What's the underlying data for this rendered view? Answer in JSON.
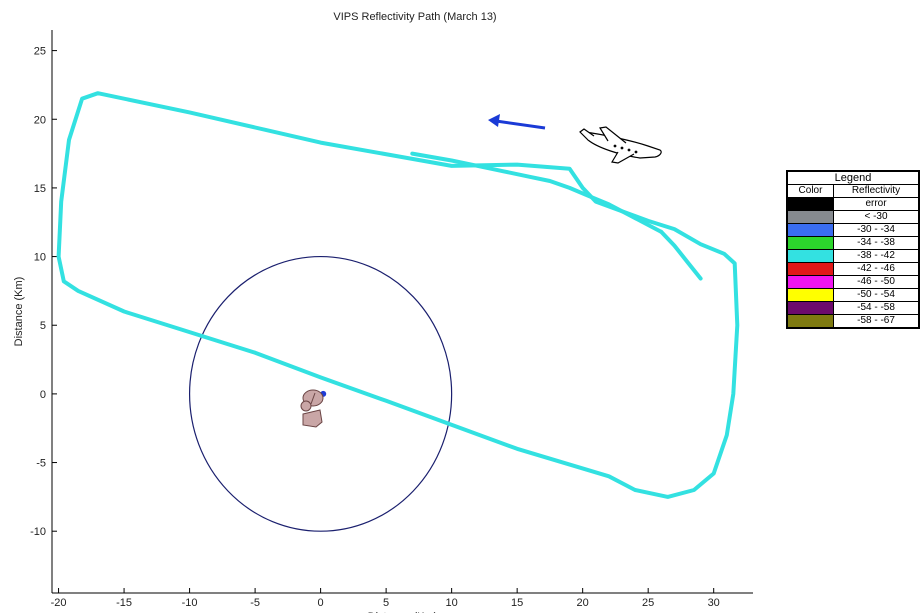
{
  "chart_data": {
    "type": "line",
    "title": "VIPS Reflectivity Path (March 13)",
    "xlabel": "Distance (Km)",
    "ylabel": "Distance (Km)",
    "xlim": [
      -20.5,
      33
    ],
    "ylim": [
      -14.5,
      26.5
    ],
    "xticks": [
      -20,
      -15,
      -10,
      -5,
      0,
      5,
      10,
      15,
      20,
      25,
      30
    ],
    "yticks": [
      -10,
      -5,
      0,
      5,
      10,
      15,
      20,
      25
    ],
    "grid": false,
    "range_circle": {
      "center": [
        0,
        0
      ],
      "radius": 10,
      "color": "#1a1f6e"
    },
    "radar_site": {
      "x": 0.2,
      "y": 0,
      "color": "#1f3bd6"
    },
    "flight_path": {
      "x": [
        -20,
        -19.8,
        -19.2,
        -18.2,
        -17,
        -10,
        0,
        10,
        15,
        19,
        20,
        21,
        23,
        25,
        27,
        29,
        30.8,
        31.6,
        31.8,
        31.5,
        31,
        30,
        28.5,
        26.5,
        24,
        22,
        15,
        5,
        0,
        -5,
        -10,
        -15,
        -18.5,
        -19.6,
        -20
      ],
      "y": [
        10,
        14,
        18.5,
        21.5,
        21.9,
        20.5,
        18.3,
        16.6,
        16.7,
        16.4,
        15,
        14,
        13.3,
        12.6,
        12,
        10.9,
        10.2,
        9.5,
        5,
        0,
        -3,
        -5.8,
        -7,
        -7.5,
        -7,
        -6,
        -4,
        -0.5,
        1.2,
        3,
        4.5,
        6,
        7.5,
        8.2,
        10
      ]
    },
    "branches": [
      {
        "x": [
          7,
          10,
          12,
          14,
          16,
          17.5,
          19,
          20.5,
          22,
          24,
          26
        ],
        "y": [
          17.5,
          17,
          16.6,
          16.2,
          15.8,
          15.5,
          15,
          14.4,
          13.8,
          12.8,
          11.8
        ]
      },
      {
        "x": [
          26,
          27,
          28,
          29
        ],
        "y": [
          11.8,
          10.8,
          9.6,
          8.4
        ]
      }
    ],
    "path_color": "#33e1e1",
    "legend": {
      "title": "Legend",
      "headers": [
        "Color",
        "Reflectivity"
      ],
      "entries": [
        {
          "color": "#000000",
          "label": "error"
        },
        {
          "color": "#868a8f",
          "label": "< -30"
        },
        {
          "color": "#3a6df0",
          "label": "-30 - -34"
        },
        {
          "color": "#2cd62c",
          "label": "-34 - -38"
        },
        {
          "color": "#33e1e1",
          "label": "-38 - -42"
        },
        {
          "color": "#e01818",
          "label": "-42 - -46"
        },
        {
          "color": "#f015f0",
          "label": "-46 - -50"
        },
        {
          "color": "#ffff00",
          "label": "-50 - -54"
        },
        {
          "color": "#6c0a6c",
          "label": "-54 - -58"
        },
        {
          "color": "#7e7a10",
          "label": "-58 - -67"
        }
      ]
    },
    "arrow_color": "#1a3ad6"
  }
}
